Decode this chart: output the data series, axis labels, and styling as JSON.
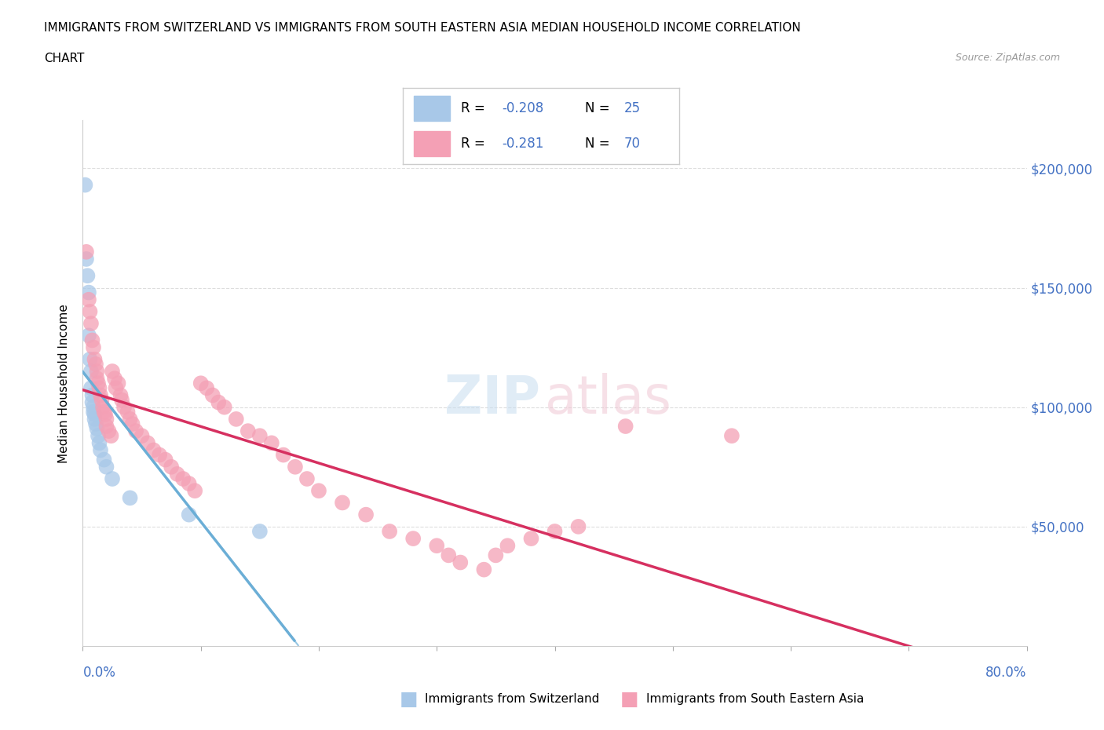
{
  "title_line1": "IMMIGRANTS FROM SWITZERLAND VS IMMIGRANTS FROM SOUTH EASTERN ASIA MEDIAN HOUSEHOLD INCOME CORRELATION",
  "title_line2": "CHART",
  "source": "Source: ZipAtlas.com",
  "ylabel": "Median Household Income",
  "ytick_labels": [
    "$50,000",
    "$100,000",
    "$150,000",
    "$200,000"
  ],
  "ytick_values": [
    50000,
    100000,
    150000,
    200000
  ],
  "ymin": 0,
  "ymax": 220000,
  "xmin": 0.0,
  "xmax": 0.8,
  "color_swiss": "#a8c8e8",
  "color_sea": "#f4a0b5",
  "color_swiss_solid": "#6baed6",
  "color_sea_line": "#d63060",
  "color_blue_text": "#4472c4",
  "swiss_x": [
    0.002,
    0.003,
    0.004,
    0.005,
    0.005,
    0.006,
    0.007,
    0.007,
    0.008,
    0.008,
    0.009,
    0.009,
    0.01,
    0.01,
    0.011,
    0.012,
    0.013,
    0.014,
    0.015,
    0.018,
    0.02,
    0.025,
    0.04,
    0.09,
    0.15
  ],
  "swiss_y": [
    193000,
    162000,
    155000,
    148000,
    130000,
    120000,
    115000,
    108000,
    105000,
    102000,
    100000,
    98000,
    97000,
    95000,
    93000,
    91000,
    88000,
    85000,
    82000,
    78000,
    75000,
    70000,
    62000,
    55000,
    48000
  ],
  "sea_x": [
    0.003,
    0.005,
    0.006,
    0.007,
    0.008,
    0.009,
    0.01,
    0.011,
    0.012,
    0.012,
    0.013,
    0.014,
    0.015,
    0.016,
    0.017,
    0.018,
    0.019,
    0.02,
    0.02,
    0.022,
    0.024,
    0.025,
    0.027,
    0.028,
    0.03,
    0.032,
    0.033,
    0.035,
    0.038,
    0.04,
    0.042,
    0.045,
    0.05,
    0.055,
    0.06,
    0.065,
    0.07,
    0.075,
    0.08,
    0.085,
    0.09,
    0.095,
    0.1,
    0.105,
    0.11,
    0.115,
    0.12,
    0.13,
    0.14,
    0.15,
    0.16,
    0.17,
    0.18,
    0.19,
    0.2,
    0.22,
    0.24,
    0.26,
    0.28,
    0.3,
    0.31,
    0.32,
    0.34,
    0.35,
    0.36,
    0.38,
    0.4,
    0.42,
    0.46,
    0.55
  ],
  "sea_y": [
    165000,
    145000,
    140000,
    135000,
    128000,
    125000,
    120000,
    118000,
    115000,
    112000,
    110000,
    108000,
    105000,
    103000,
    100000,
    98000,
    97000,
    95000,
    92000,
    90000,
    88000,
    115000,
    112000,
    108000,
    110000,
    105000,
    103000,
    100000,
    98000,
    95000,
    93000,
    90000,
    88000,
    85000,
    82000,
    80000,
    78000,
    75000,
    72000,
    70000,
    68000,
    65000,
    110000,
    108000,
    105000,
    102000,
    100000,
    95000,
    90000,
    88000,
    85000,
    80000,
    75000,
    70000,
    65000,
    60000,
    55000,
    48000,
    45000,
    42000,
    38000,
    35000,
    32000,
    38000,
    42000,
    45000,
    48000,
    50000,
    92000,
    88000
  ]
}
